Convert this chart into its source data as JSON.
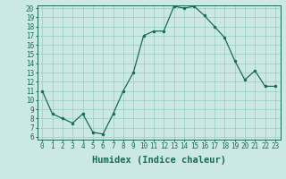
{
  "xlabel": "Humidex (Indice chaleur)",
  "ylabel": "",
  "x_values": [
    0,
    1,
    2,
    3,
    4,
    5,
    6,
    7,
    8,
    9,
    10,
    11,
    12,
    13,
    14,
    15,
    16,
    17,
    18,
    19,
    20,
    21,
    22,
    23
  ],
  "y_values": [
    11,
    8.5,
    8,
    7.5,
    8.5,
    6.5,
    6.3,
    8.5,
    11,
    13,
    17,
    17.5,
    17.5,
    20.2,
    20,
    20.2,
    19.2,
    18,
    16.8,
    14.3,
    12.2,
    13.2,
    11.5,
    11.5
  ],
  "ylim": [
    6,
    20
  ],
  "xlim": [
    -0.5,
    23.5
  ],
  "yticks": [
    6,
    7,
    8,
    9,
    10,
    11,
    12,
    13,
    14,
    15,
    16,
    17,
    18,
    19,
    20
  ],
  "xticks": [
    0,
    1,
    2,
    3,
    4,
    5,
    6,
    7,
    8,
    9,
    10,
    11,
    12,
    13,
    14,
    15,
    16,
    17,
    18,
    19,
    20,
    21,
    22,
    23
  ],
  "line_color": "#1a6b5a",
  "marker_color": "#1a6b5a",
  "bg_color": "#cce8e4",
  "grid_color": "#99ccc6",
  "tick_label_fontsize": 5.5,
  "xlabel_fontsize": 7.5
}
